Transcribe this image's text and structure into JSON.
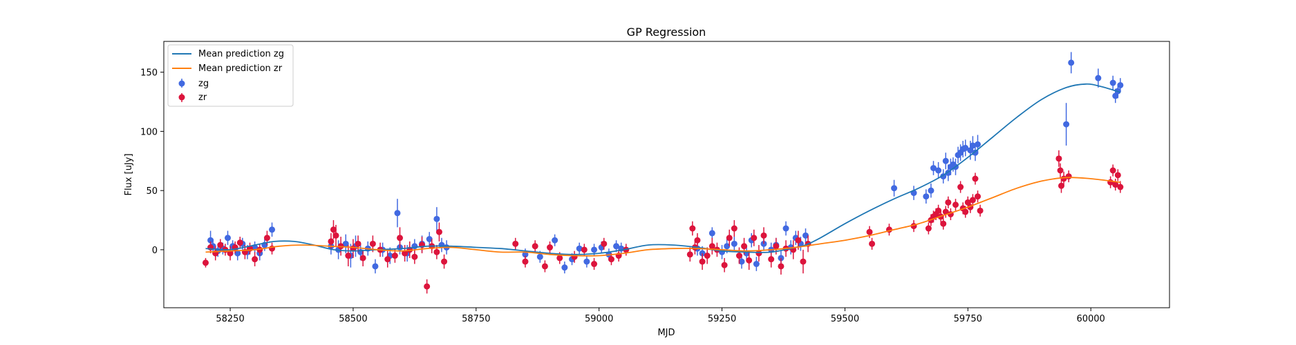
{
  "chart_data": {
    "type": "scatter",
    "title": "GP Regression",
    "xlabel": "MJD",
    "ylabel": "Flux [uJy]",
    "xlim": [
      58115,
      60160
    ],
    "ylim": [
      -49,
      176
    ],
    "xticks": [
      58250,
      58500,
      58750,
      59000,
      59250,
      59500,
      59750,
      60000
    ],
    "yticks": [
      0,
      50,
      100,
      150
    ],
    "legend": {
      "position": "top-left",
      "entries": [
        "Mean prediction zg",
        "Mean prediction zr",
        "zg",
        "zr"
      ]
    },
    "colors": {
      "mean_zg": "#1f77b4",
      "mean_zr": "#ff7f0e",
      "zg": "#4169e1",
      "zr": "#dc143c"
    },
    "series": [
      {
        "name": "Mean prediction zg",
        "kind": "line",
        "x": [
          58200,
          58250,
          58300,
          58340,
          58380,
          58420,
          58460,
          58500,
          58550,
          58600,
          58650,
          58700,
          58750,
          58800,
          58850,
          58900,
          58950,
          59000,
          59050,
          59100,
          59150,
          59200,
          59250,
          59300,
          59350,
          59400,
          59420,
          59450,
          59500,
          59550,
          59600,
          59650,
          59700,
          59750,
          59800,
          59850,
          59900,
          59950,
          59990,
          60020,
          60060
        ],
        "y": [
          1,
          0,
          4,
          7,
          7,
          4,
          0,
          -1,
          0,
          1,
          3,
          3,
          2,
          1,
          -1,
          -3,
          -4,
          -3,
          0,
          4,
          4,
          2,
          -1,
          -2,
          -2,
          2,
          4,
          10,
          22,
          33,
          43,
          52,
          63,
          78,
          95,
          112,
          127,
          137,
          140,
          138,
          133
        ]
      },
      {
        "name": "Mean prediction zr",
        "kind": "line",
        "x": [
          58200,
          58250,
          58300,
          58350,
          58400,
          58450,
          58500,
          58550,
          58600,
          58650,
          58700,
          58750,
          58800,
          58850,
          58900,
          58950,
          59000,
          59050,
          59100,
          59150,
          59200,
          59250,
          59300,
          59350,
          59400,
          59450,
          59500,
          59550,
          59600,
          59650,
          59700,
          59750,
          59800,
          59850,
          59900,
          59950,
          60000,
          60060
        ],
        "y": [
          -2,
          -1,
          0,
          3,
          4,
          3,
          2,
          0,
          -1,
          1,
          2,
          0,
          -2,
          -2,
          -4,
          -5,
          -5,
          -3,
          0,
          1,
          1,
          0,
          -1,
          0,
          2,
          5,
          8,
          12,
          17,
          22,
          29,
          36,
          44,
          52,
          58,
          61,
          60,
          57
        ]
      },
      {
        "name": "zg",
        "kind": "errorbar",
        "x": [
          58210,
          58215,
          58225,
          58235,
          58245,
          58255,
          58265,
          58275,
          58285,
          58300,
          58310,
          58320,
          58335,
          58455,
          58470,
          58485,
          58495,
          58505,
          58515,
          58530,
          58545,
          58560,
          58575,
          58590,
          58595,
          58610,
          58625,
          58640,
          58655,
          58670,
          58680,
          58690,
          58850,
          58880,
          58910,
          58930,
          58945,
          58960,
          58975,
          58990,
          59005,
          59020,
          59035,
          59045,
          59200,
          59210,
          59230,
          59250,
          59260,
          59275,
          59290,
          59300,
          59310,
          59320,
          59335,
          59350,
          59360,
          59370,
          59380,
          59390,
          59400,
          59410,
          59420,
          59600,
          59640,
          59665,
          59675,
          59680,
          59690,
          59700,
          59705,
          59710,
          59715,
          59720,
          59725,
          59730,
          59735,
          59740,
          59745,
          59755,
          59760,
          59765,
          59770,
          59950,
          59960,
          60015,
          60045,
          60050,
          60055,
          60060
        ],
        "y": [
          8,
          3,
          -1,
          1,
          10,
          3,
          -3,
          5,
          -2,
          2,
          -3,
          4,
          17,
          3,
          0,
          5,
          -5,
          3,
          -2,
          1,
          -14,
          0,
          -5,
          31,
          2,
          -3,
          3,
          5,
          9,
          26,
          4,
          2,
          -4,
          -6,
          8,
          -15,
          -8,
          1,
          -10,
          0,
          2,
          -4,
          3,
          1,
          1,
          -3,
          14,
          -2,
          3,
          5,
          -10,
          -3,
          8,
          -12,
          5,
          0,
          4,
          -7,
          18,
          2,
          10,
          5,
          12,
          52,
          48,
          45,
          50,
          69,
          67,
          62,
          75,
          65,
          70,
          72,
          70,
          80,
          82,
          85,
          86,
          84,
          88,
          82,
          89,
          106,
          158,
          145,
          141,
          130,
          134,
          139
        ],
        "err": [
          8,
          6,
          5,
          5,
          6,
          5,
          6,
          5,
          6,
          5,
          6,
          5,
          6,
          7,
          8,
          8,
          10,
          9,
          7,
          6,
          6,
          6,
          7,
          12,
          6,
          7,
          6,
          7,
          6,
          10,
          6,
          6,
          5,
          5,
          5,
          5,
          5,
          5,
          5,
          5,
          5,
          5,
          5,
          5,
          6,
          6,
          5,
          6,
          6,
          6,
          6,
          6,
          6,
          6,
          6,
          6,
          6,
          6,
          6,
          6,
          6,
          6,
          6,
          7,
          6,
          6,
          6,
          6,
          7,
          6,
          7,
          7,
          7,
          6,
          7,
          7,
          7,
          7,
          7,
          8,
          8,
          7,
          8,
          18,
          9,
          8,
          6,
          6,
          6,
          6
        ]
      },
      {
        "name": "zr",
        "kind": "errorbar",
        "x": [
          58200,
          58210,
          58220,
          58230,
          58240,
          58250,
          58260,
          58270,
          58280,
          58290,
          58300,
          58310,
          58325,
          58335,
          58455,
          58460,
          58465,
          58475,
          58490,
          58500,
          58510,
          58520,
          58540,
          58555,
          58570,
          58585,
          58595,
          58605,
          58615,
          58625,
          58640,
          58650,
          58660,
          58670,
          58675,
          58685,
          58830,
          58850,
          58870,
          58890,
          58900,
          58920,
          58950,
          58970,
          58990,
          59010,
          59025,
          59040,
          59055,
          59185,
          59190,
          59195,
          59200,
          59210,
          59220,
          59230,
          59240,
          59255,
          59265,
          59275,
          59285,
          59295,
          59305,
          59315,
          59325,
          59335,
          59350,
          59360,
          59370,
          59380,
          59395,
          59405,
          59415,
          59425,
          59550,
          59555,
          59590,
          59640,
          59670,
          59675,
          59680,
          59685,
          59690,
          59695,
          59700,
          59705,
          59710,
          59715,
          59725,
          59735,
          59740,
          59745,
          59750,
          59755,
          59760,
          59765,
          59770,
          59775,
          59935,
          59938,
          59940,
          59945,
          59955,
          60040,
          60045,
          60050,
          60055,
          60060
        ],
        "y": [
          -11,
          2,
          -3,
          4,
          0,
          -3,
          2,
          6,
          -2,
          1,
          -8,
          0,
          10,
          1,
          7,
          17,
          12,
          3,
          -5,
          1,
          5,
          -7,
          5,
          0,
          -8,
          -5,
          10,
          -3,
          0,
          -6,
          4,
          -31,
          3,
          -2,
          15,
          -10,
          5,
          -10,
          3,
          -14,
          2,
          -7,
          -6,
          0,
          -12,
          5,
          -8,
          -5,
          0,
          -4,
          18,
          2,
          8,
          -10,
          -5,
          3,
          0,
          -13,
          10,
          18,
          -5,
          3,
          -9,
          10,
          -3,
          12,
          -8,
          3,
          -14,
          1,
          0,
          8,
          -10,
          5,
          15,
          5,
          17,
          20,
          18,
          25,
          28,
          30,
          33,
          28,
          22,
          32,
          40,
          30,
          38,
          53,
          35,
          32,
          40,
          36,
          42,
          60,
          45,
          33,
          77,
          67,
          54,
          60,
          62,
          57,
          67,
          55,
          63,
          53
        ],
        "err": [
          4,
          5,
          6,
          5,
          5,
          6,
          5,
          5,
          6,
          5,
          6,
          5,
          6,
          5,
          7,
          8,
          9,
          8,
          9,
          8,
          7,
          7,
          7,
          6,
          7,
          6,
          9,
          7,
          7,
          6,
          7,
          6,
          6,
          6,
          8,
          6,
          5,
          5,
          5,
          5,
          5,
          5,
          5,
          5,
          5,
          5,
          5,
          5,
          5,
          6,
          6,
          6,
          6,
          7,
          7,
          7,
          6,
          6,
          7,
          7,
          7,
          7,
          8,
          7,
          7,
          7,
          7,
          7,
          7,
          7,
          8,
          8,
          10,
          7,
          5,
          5,
          5,
          5,
          5,
          5,
          5,
          5,
          5,
          5,
          5,
          5,
          5,
          5,
          5,
          5,
          5,
          5,
          5,
          5,
          5,
          5,
          5,
          5,
          7,
          6,
          6,
          6,
          5,
          5,
          5,
          5,
          5,
          5
        ]
      }
    ]
  }
}
